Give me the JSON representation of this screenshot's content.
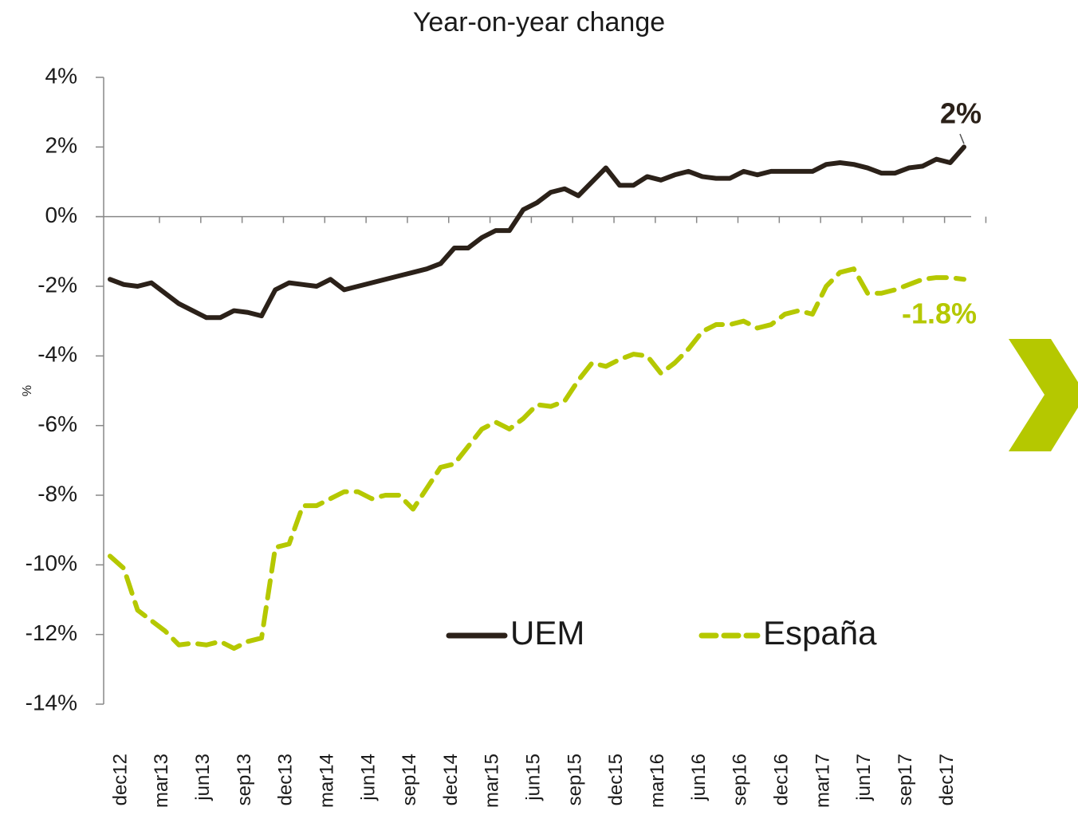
{
  "chart_data": {
    "type": "line",
    "title": "Year-on-year change",
    "y_label": "%",
    "categories": [
      "dec12",
      null,
      null,
      "mar13",
      null,
      null,
      "jun13",
      null,
      null,
      "sep13",
      null,
      null,
      "dec13",
      null,
      null,
      "mar14",
      null,
      null,
      "jun14",
      null,
      null,
      "sep14",
      null,
      null,
      "dec14",
      null,
      null,
      "mar15",
      null,
      null,
      "jun15",
      null,
      null,
      "sep15",
      null,
      null,
      "dec15",
      null,
      null,
      "mar16",
      null,
      null,
      "jun16",
      null,
      null,
      "sep16",
      null,
      null,
      "dec16",
      null,
      null,
      "mar17",
      null,
      null,
      "jun17",
      null,
      null,
      "sep17",
      null,
      null,
      "dec17",
      null,
      null
    ],
    "series": [
      {
        "name": "UEM",
        "color": "#2b2119",
        "dash": false,
        "values": [
          -1.8,
          -1.95,
          -2.0,
          -1.9,
          -2.2,
          -2.5,
          -2.7,
          -2.9,
          -2.9,
          -2.7,
          -2.75,
          -2.85,
          -2.1,
          -1.9,
          -1.95,
          -2.0,
          -1.8,
          -2.1,
          -2.0,
          -1.9,
          -1.8,
          -1.7,
          -1.6,
          -1.5,
          -1.35,
          -0.9,
          -0.9,
          -0.6,
          -0.4,
          -0.4,
          0.2,
          0.4,
          0.7,
          0.8,
          0.6,
          1.0,
          1.4,
          0.9,
          0.9,
          1.15,
          1.05,
          1.2,
          1.3,
          1.15,
          1.1,
          1.1,
          1.3,
          1.2,
          1.3,
          1.3,
          1.3,
          1.3,
          1.5,
          1.55,
          1.5,
          1.4,
          1.25,
          1.25,
          1.4,
          1.45,
          1.65,
          1.55,
          2.0
        ]
      },
      {
        "name": "España",
        "color": "#b5c800",
        "dash": true,
        "values": [
          -9.75,
          -10.1,
          -11.3,
          -11.6,
          -11.9,
          -12.3,
          -12.25,
          -12.3,
          -12.2,
          -12.4,
          -12.2,
          -12.1,
          -9.5,
          -9.4,
          -8.3,
          -8.3,
          -8.1,
          -7.9,
          -7.9,
          -8.1,
          -8.0,
          -8.0,
          -8.4,
          -7.8,
          -7.2,
          -7.1,
          -6.6,
          -6.1,
          -5.9,
          -6.1,
          -5.8,
          -5.4,
          -5.45,
          -5.3,
          -4.7,
          -4.2,
          -4.3,
          -4.1,
          -3.95,
          -4.0,
          -4.5,
          -4.2,
          -3.8,
          -3.3,
          -3.1,
          -3.1,
          -3.0,
          -3.2,
          -3.1,
          -2.8,
          -2.7,
          -2.8,
          -2.0,
          -1.6,
          -1.5,
          -2.2,
          -2.2,
          -2.1,
          -1.95,
          -1.8,
          -1.75,
          -1.75,
          -1.8
        ]
      }
    ],
    "annotations": [
      {
        "text": "2%",
        "value": 2,
        "color": "#2b2119"
      },
      {
        "text": "-1.8%",
        "value": -1.8,
        "color": "#b5c800"
      }
    ],
    "ylim": [
      -14,
      4
    ],
    "yticks": [
      {
        "value": -14,
        "label": "-14%"
      },
      {
        "value": -12,
        "label": "-12%"
      },
      {
        "value": -10,
        "label": "-10%"
      },
      {
        "value": -8,
        "label": "-8%"
      },
      {
        "value": -6,
        "label": "-6%"
      },
      {
        "value": -4,
        "label": "-4%"
      },
      {
        "value": -2,
        "label": "-2%"
      },
      {
        "value": 0,
        "label": "0%"
      },
      {
        "value": 2,
        "label": "2%"
      },
      {
        "value": 4,
        "label": "4%"
      }
    ]
  }
}
